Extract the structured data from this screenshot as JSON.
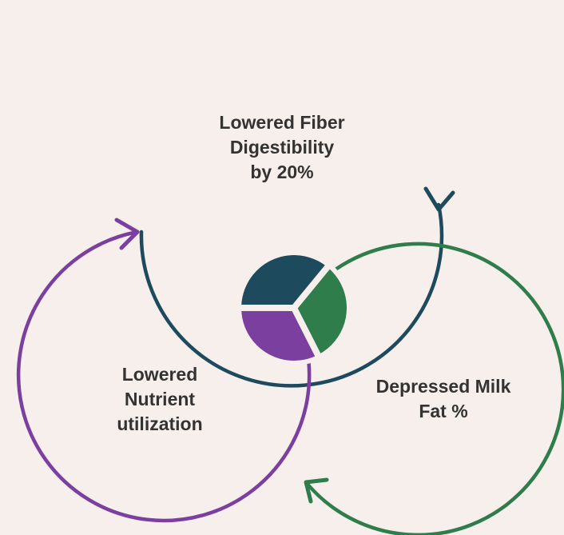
{
  "diagram": {
    "nodes": [
      {
        "id": "fiber",
        "lines": [
          "Lowered  Fiber",
          "Digestibility",
          "by 20%"
        ],
        "color": "#1e4a5e"
      },
      {
        "id": "milk",
        "lines": [
          "Depressed Milk",
          "Fat %"
        ],
        "color": "#2e7d4a"
      },
      {
        "id": "nutrient",
        "lines": [
          "Lowered",
          "Nutrient",
          "utilization"
        ],
        "color": "#7b3fa0"
      }
    ],
    "cycle": [
      "fiber",
      "milk",
      "nutrient"
    ],
    "colors": {
      "background": "#f7efec",
      "text": "#333333",
      "navy": "#1e4a5e",
      "green": "#2e7d4a",
      "purple": "#7b3fa0"
    }
  }
}
